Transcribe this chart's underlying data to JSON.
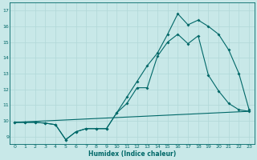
{
  "xlabel": "Humidex (Indice chaleur)",
  "bg_color": "#c8e8e8",
  "grid_color": "#b0d8d8",
  "line_color": "#006868",
  "x_ticks": [
    0,
    1,
    2,
    3,
    4,
    5,
    6,
    7,
    8,
    9,
    10,
    11,
    12,
    13,
    14,
    15,
    16,
    17,
    18,
    19,
    20,
    21,
    22,
    23
  ],
  "y_ticks": [
    9,
    10,
    11,
    12,
    13,
    14,
    15,
    16,
    17
  ],
  "xlim": [
    -0.5,
    23.5
  ],
  "ylim": [
    8.5,
    17.5
  ],
  "line1_x": [
    0,
    1,
    2,
    3,
    4,
    5,
    6,
    7,
    8,
    9,
    10,
    11,
    12,
    13,
    14,
    15,
    16,
    17,
    18,
    19,
    20,
    21,
    22,
    23
  ],
  "line1_y": [
    9.9,
    9.9,
    9.9,
    9.85,
    9.75,
    8.8,
    9.3,
    9.5,
    9.5,
    9.5,
    10.5,
    11.1,
    12.1,
    12.1,
    14.1,
    15.0,
    15.5,
    14.9,
    15.4,
    12.9,
    11.9,
    11.1,
    10.7,
    10.6
  ],
  "line2_x": [
    0,
    1,
    2,
    3,
    4,
    5,
    6,
    7,
    8,
    9,
    10,
    11,
    12,
    13,
    14,
    15,
    16,
    17,
    18,
    19,
    20,
    21,
    22,
    23
  ],
  "line2_y": [
    9.9,
    9.9,
    9.9,
    9.85,
    9.75,
    8.8,
    9.3,
    9.5,
    9.5,
    9.5,
    10.5,
    11.5,
    12.5,
    13.5,
    14.3,
    15.5,
    16.8,
    16.1,
    16.4,
    16.0,
    15.5,
    14.5,
    13.0,
    10.7
  ],
  "line3_x": [
    0,
    23
  ],
  "line3_y": [
    9.9,
    10.6
  ]
}
